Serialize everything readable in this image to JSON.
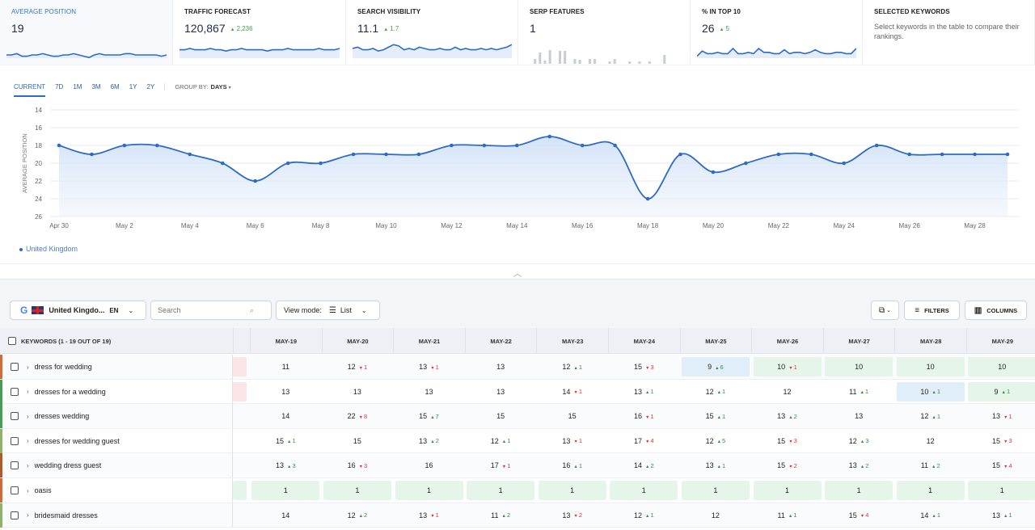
{
  "cards": [
    {
      "title": "AVERAGE POSITION",
      "value": "19",
      "delta": "",
      "active": true,
      "w": 214,
      "spark": "line",
      "points": [
        64,
        64,
        63,
        65,
        65,
        64,
        64,
        63,
        64,
        65,
        65,
        64,
        64,
        63,
        64,
        65,
        66,
        64,
        63,
        64,
        64,
        64,
        64,
        63,
        63,
        64,
        64,
        64,
        64,
        64,
        65,
        64
      ]
    },
    {
      "title": "TRAFFIC FORECAST",
      "value": "120,867",
      "delta": "2,236",
      "w": 214,
      "spark": "line",
      "points": [
        60,
        60,
        59,
        60,
        60,
        60,
        59,
        60,
        60,
        61,
        60,
        60,
        59,
        60,
        60,
        60,
        60,
        61,
        60,
        60,
        60,
        59,
        60,
        60,
        60,
        60,
        60,
        59,
        60,
        60,
        60,
        59
      ]
    },
    {
      "title": "SEARCH VISIBILITY",
      "value": "11.1",
      "delta": "1.7",
      "w": 213,
      "spark": "line",
      "points": [
        59,
        58,
        60,
        60,
        59,
        61,
        60,
        58,
        56,
        57,
        60,
        59,
        60,
        58,
        59,
        60,
        60,
        59,
        60,
        60,
        58,
        60,
        59,
        60,
        60,
        59,
        60,
        59,
        60,
        59,
        58,
        56
      ]
    },
    {
      "title": "SERP FEATURES",
      "value": "1",
      "delta": "",
      "w": 213,
      "spark": "bars",
      "bars": [
        0,
        6,
        14,
        4,
        17,
        0,
        16,
        16,
        0,
        6,
        5,
        0,
        6,
        6,
        0,
        0,
        3,
        6,
        0,
        0,
        3,
        0,
        3,
        0,
        3,
        0,
        0,
        11,
        0,
        0,
        0,
        0
      ]
    },
    {
      "title": "% IN TOP 10",
      "value": "26",
      "delta": "5",
      "w": 213,
      "spark": "line",
      "points": [
        65,
        61,
        63,
        63,
        62,
        63,
        63,
        59,
        63,
        63,
        62,
        63,
        59,
        62,
        62,
        63,
        63,
        60,
        63,
        62,
        62,
        63,
        62,
        60,
        62,
        63,
        63,
        62,
        62,
        63,
        63,
        59
      ]
    },
    {
      "title": "SELECTED KEYWORDS",
      "value": "",
      "text": "Select keywords in the table to compare their rankings.",
      "w": 213,
      "spark": "none"
    }
  ],
  "periods": [
    "CURRENT",
    "7D",
    "1M",
    "3M",
    "6M",
    "1Y",
    "2Y"
  ],
  "groupby_label": "GROUP BY:",
  "groupby_value": "DAYS",
  "chart_data": {
    "type": "line",
    "ylabel": "AVERAGE POSITION",
    "ylim": [
      14,
      26
    ],
    "y_inverted": true,
    "yticks": [
      14,
      16,
      18,
      20,
      22,
      24,
      26
    ],
    "x": [
      "Apr 30",
      "May 1",
      "May 2",
      "May 3",
      "May 4",
      "May 5",
      "May 6",
      "May 7",
      "May 8",
      "May 9",
      "May 10",
      "May 11",
      "May 12",
      "May 13",
      "May 14",
      "May 15",
      "May 16",
      "May 17",
      "May 18",
      "May 19",
      "May 20",
      "May 21",
      "May 22",
      "May 23",
      "May 24",
      "May 25",
      "May 26",
      "May 27",
      "May 28",
      "May 29"
    ],
    "xtick_labels": [
      "Apr 30",
      "May 2",
      "May 4",
      "May 6",
      "May 8",
      "May 10",
      "May 12",
      "May 14",
      "May 16",
      "May 18",
      "May 20",
      "May 22",
      "May 24",
      "May 26",
      "May 28"
    ],
    "series": [
      {
        "name": "United Kingdom",
        "values": [
          18,
          19,
          18,
          18,
          19,
          20,
          22,
          20,
          20,
          19,
          19,
          19,
          18,
          18,
          18,
          17,
          18,
          18,
          24,
          19,
          21,
          20,
          19,
          19,
          20,
          18,
          19,
          19,
          19,
          19
        ]
      }
    ],
    "grid": true
  },
  "toolbar": {
    "db": "United Kingdo...",
    "lang": "EN",
    "search_placeholder": "Search",
    "viewmode_label": "View mode:",
    "viewmode_value": "List",
    "filters": "FILTERS",
    "columns": "COLUMNS"
  },
  "table": {
    "kw_header": "KEYWORDS (1 - 19 OUT OF 19)",
    "dates": [
      "MAY-19",
      "MAY-20",
      "MAY-21",
      "MAY-22",
      "MAY-23",
      "MAY-24",
      "MAY-25",
      "MAY-26",
      "MAY-27",
      "MAY-28",
      "MAY-29"
    ],
    "rows": [
      {
        "kw": "dress for wedding",
        "stub": "r",
        "cells": [
          [
            "11",
            "",
            ""
          ],
          [
            "12",
            "dn",
            "1"
          ],
          [
            "13",
            "dn",
            "1"
          ],
          [
            "13",
            "",
            ""
          ],
          [
            "12",
            "up",
            "1"
          ],
          [
            "15",
            "dn",
            "3"
          ],
          [
            "9",
            "up",
            "6",
            "b"
          ],
          [
            "10",
            "dn",
            "1",
            "g"
          ],
          [
            "10",
            "",
            "",
            "g"
          ],
          [
            "10",
            "",
            "",
            "g"
          ],
          [
            "10",
            "",
            "",
            "g"
          ]
        ]
      },
      {
        "kw": "dresses for a wedding",
        "stub": "r",
        "cells": [
          [
            "13",
            "",
            ""
          ],
          [
            "13",
            "",
            ""
          ],
          [
            "13",
            "",
            ""
          ],
          [
            "13",
            "",
            ""
          ],
          [
            "14",
            "dn",
            "1"
          ],
          [
            "13",
            "up",
            "1"
          ],
          [
            "12",
            "up",
            "1"
          ],
          [
            "12",
            "",
            ""
          ],
          [
            "11",
            "up",
            "1"
          ],
          [
            "10",
            "up",
            "1",
            "b"
          ],
          [
            "9",
            "up",
            "1",
            "g"
          ]
        ]
      },
      {
        "kw": "dresses wedding",
        "stub": "",
        "cells": [
          [
            "14",
            "",
            ""
          ],
          [
            "22",
            "dn",
            "8"
          ],
          [
            "15",
            "up",
            "7"
          ],
          [
            "15",
            "",
            ""
          ],
          [
            "15",
            "",
            ""
          ],
          [
            "16",
            "dn",
            "1"
          ],
          [
            "15",
            "up",
            "1"
          ],
          [
            "13",
            "up",
            "2"
          ],
          [
            "13",
            "",
            ""
          ],
          [
            "12",
            "up",
            "1"
          ],
          [
            "13",
            "dn",
            "1"
          ]
        ]
      },
      {
        "kw": "dresses for wedding guest",
        "stub": "",
        "cells": [
          [
            "15",
            "up",
            "1"
          ],
          [
            "15",
            "",
            ""
          ],
          [
            "13",
            "up",
            "2"
          ],
          [
            "12",
            "up",
            "1"
          ],
          [
            "13",
            "dn",
            "1"
          ],
          [
            "17",
            "dn",
            "4"
          ],
          [
            "12",
            "up",
            "5"
          ],
          [
            "15",
            "dn",
            "3"
          ],
          [
            "12",
            "up",
            "3"
          ],
          [
            "12",
            "",
            ""
          ],
          [
            "15",
            "dn",
            "3"
          ]
        ]
      },
      {
        "kw": "wedding dress guest",
        "stub": "",
        "cells": [
          [
            "13",
            "up",
            "3"
          ],
          [
            "16",
            "dn",
            "3"
          ],
          [
            "16",
            "",
            ""
          ],
          [
            "17",
            "dn",
            "1"
          ],
          [
            "16",
            "up",
            "1"
          ],
          [
            "14",
            "up",
            "2"
          ],
          [
            "13",
            "up",
            "1"
          ],
          [
            "15",
            "dn",
            "2"
          ],
          [
            "13",
            "up",
            "2"
          ],
          [
            "11",
            "up",
            "2"
          ],
          [
            "15",
            "dn",
            "4"
          ]
        ]
      },
      {
        "kw": "oasis",
        "stub": "g",
        "cells": [
          [
            "1",
            "",
            "",
            "g"
          ],
          [
            "1",
            "",
            "",
            "g"
          ],
          [
            "1",
            "",
            "",
            "g"
          ],
          [
            "1",
            "",
            "",
            "g"
          ],
          [
            "1",
            "",
            "",
            "g"
          ],
          [
            "1",
            "",
            "",
            "g"
          ],
          [
            "1",
            "",
            "",
            "g"
          ],
          [
            "1",
            "",
            "",
            "g"
          ],
          [
            "1",
            "",
            "",
            "g"
          ],
          [
            "1",
            "",
            "",
            "g"
          ],
          [
            "1",
            "",
            "",
            "g"
          ]
        ]
      },
      {
        "kw": "bridesmaid dresses",
        "stub": "",
        "cells": [
          [
            "14",
            "",
            ""
          ],
          [
            "12",
            "up",
            "2"
          ],
          [
            "13",
            "dn",
            "1"
          ],
          [
            "11",
            "up",
            "2"
          ],
          [
            "13",
            "dn",
            "2"
          ],
          [
            "12",
            "up",
            "1"
          ],
          [
            "12",
            "",
            ""
          ],
          [
            "11",
            "up",
            "1"
          ],
          [
            "15",
            "dn",
            "4"
          ],
          [
            "14",
            "up",
            "1"
          ],
          [
            "13",
            "up",
            "1"
          ]
        ]
      }
    ]
  },
  "colors": {
    "accent": "#2e6bc4",
    "up": "#3a8a4e",
    "down": "#dd3333",
    "highlight_green": "#e6f5ea",
    "highlight_blue": "#e0eefa"
  }
}
